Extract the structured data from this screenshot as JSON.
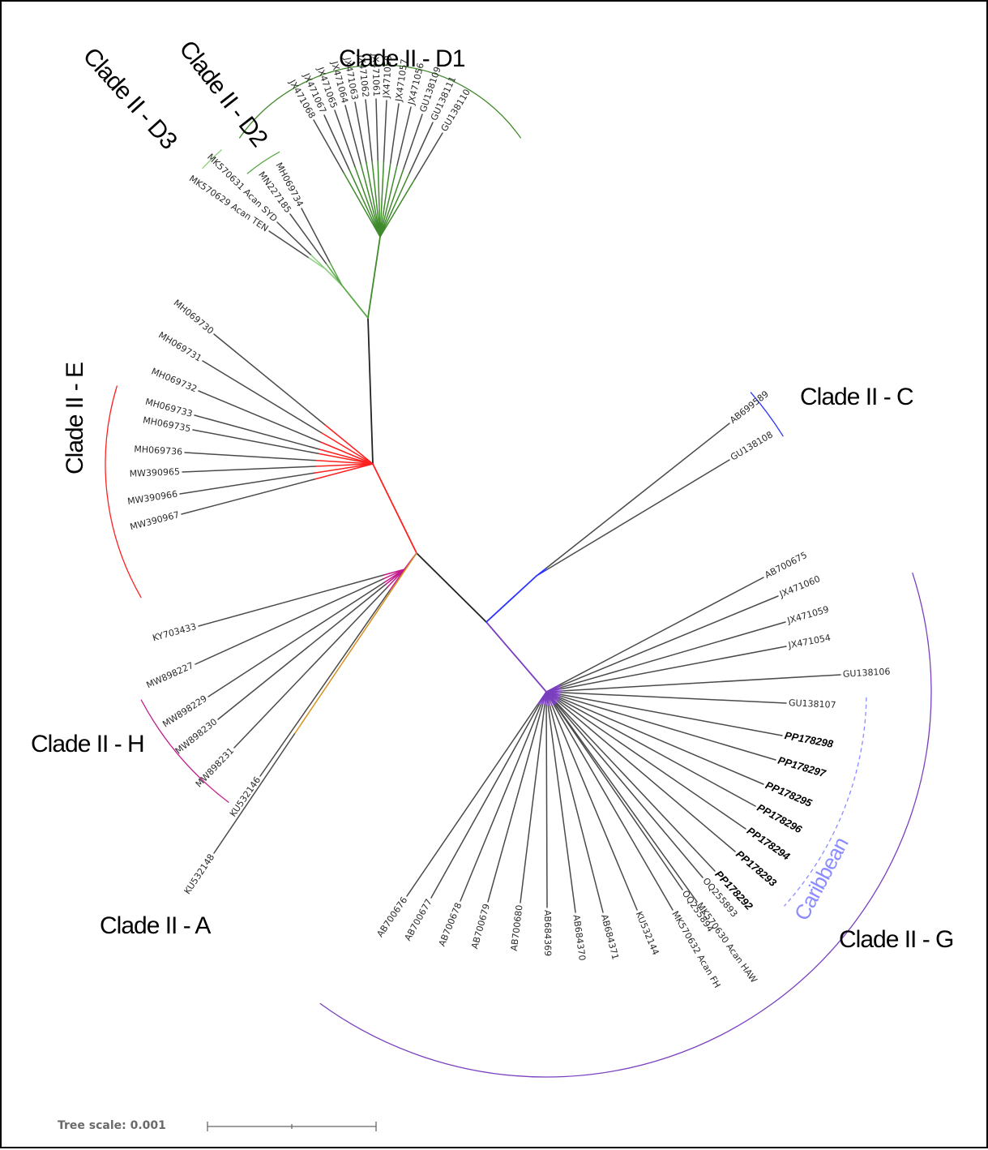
{
  "colors": {
    "D1": "#3f8a2a",
    "D2": "#5aa84a",
    "D3": "#8fcf80",
    "E": "#ff2020",
    "C": "#2a32ff",
    "G": "#7a3fbf",
    "H": "#c21a8c",
    "A": "#d8901c",
    "caribbean": "#8a8cff",
    "stem": "#222222"
  },
  "tree_scale_label": "Tree scale: 0.001",
  "clades": {
    "D1": {
      "label": "Clade II - D1",
      "leaves": [
        "JX471068",
        "JX471067",
        "JX471065",
        "JX471064",
        "JX471063",
        "JX471062",
        "JX471061",
        "JX471058",
        "JX471057",
        "JX471056",
        "GU138109",
        "GU138111",
        "GU138110"
      ]
    },
    "D2": {
      "label": "Clade II - D2",
      "leaves": [
        "MH069734",
        "MN227185"
      ]
    },
    "D3": {
      "label": "Clade II - D3",
      "leaves": [
        "MK570631 Acan SYD",
        "MK570629 Acan TEN"
      ]
    },
    "E": {
      "label": "Clade II - E",
      "leaves": [
        "MH069730",
        "MH069731",
        "MH069732",
        "MH069733",
        "MH069735",
        "MH069736",
        "MW390965",
        "MW390966",
        "MW390967"
      ]
    },
    "C": {
      "label": "Clade II - C",
      "leaves": [
        "AB699589",
        "GU138108"
      ]
    },
    "H": {
      "label": "Clade II - H",
      "leaves": [
        "KY703433",
        "MW898227",
        "MW898229",
        "MW898230",
        "MW898231",
        "KU532146"
      ]
    },
    "A": {
      "label": "Clade II - A",
      "leaves": [
        "KU532148"
      ]
    },
    "G": {
      "label": "Clade II - G",
      "leaves": [
        "AB700675",
        "JX471060",
        "JX471059",
        "JX471054",
        "GU138106",
        "GU138107",
        "PP178298",
        "PP178297",
        "PP178295",
        "PP178296",
        "PP178294",
        "PP178293",
        "PP178292",
        "OQ255893",
        "OQ255894",
        "MK570630 Acan HAW",
        "MK570632 Acan FH",
        "KU532144",
        "AB684371",
        "AB684370",
        "AB684369",
        "AB700680",
        "AB700679",
        "AB700678",
        "AB700677",
        "AB700676"
      ]
    },
    "caribbean": {
      "label": "Caribbean"
    }
  }
}
